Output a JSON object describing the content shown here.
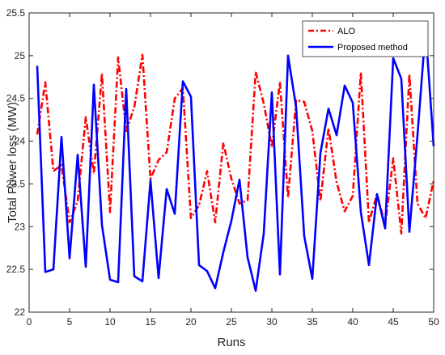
{
  "chart_data": {
    "type": "line",
    "title": "",
    "xlabel": "Runs",
    "ylabel": "Total Power loss (MW)",
    "xlim": [
      0,
      50
    ],
    "ylim": [
      22,
      25.5
    ],
    "xticks": [
      0,
      5,
      10,
      15,
      20,
      25,
      30,
      35,
      40,
      45,
      50
    ],
    "yticks": [
      22,
      22.5,
      23,
      23.5,
      24,
      24.5,
      25,
      25.5
    ],
    "x_tick_labels": [
      "0",
      "5",
      "10",
      "15",
      "20",
      "25",
      "30",
      "35",
      "40",
      "45",
      "50"
    ],
    "y_tick_labels": [
      "22",
      "22.5",
      "23",
      "23.5",
      "24",
      "24.5",
      "25",
      "25.5"
    ],
    "grid": false,
    "legend": "top-right",
    "x": [
      1,
      2,
      3,
      4,
      5,
      6,
      7,
      8,
      9,
      10,
      11,
      12,
      13,
      14,
      15,
      16,
      17,
      18,
      19,
      20,
      21,
      22,
      23,
      24,
      25,
      26,
      27,
      28,
      29,
      30,
      31,
      32,
      33,
      34,
      35,
      36,
      37,
      38,
      39,
      40,
      41,
      42,
      43,
      44,
      45,
      46,
      47,
      48,
      49,
      50
    ],
    "series": [
      {
        "name": "ALO",
        "color": "#ff0000",
        "style": "dash-dot",
        "values": [
          24.08,
          24.69,
          23.65,
          23.72,
          23.05,
          23.3,
          24.28,
          23.62,
          24.79,
          23.17,
          24.98,
          24.12,
          24.4,
          25.01,
          23.56,
          23.78,
          23.87,
          24.5,
          24.62,
          23.1,
          23.25,
          23.65,
          23.05,
          23.98,
          23.56,
          23.27,
          23.31,
          24.81,
          24.44,
          23.93,
          24.69,
          23.34,
          24.48,
          24.46,
          24.12,
          23.3,
          24.15,
          23.52,
          23.18,
          23.36,
          24.8,
          23.05,
          23.38,
          23.02,
          23.8,
          22.92,
          24.78,
          23.27,
          23.1,
          23.54
        ]
      },
      {
        "name": "Proposed method",
        "color": "#0000ff",
        "style": "solid",
        "values": [
          24.88,
          22.47,
          22.5,
          24.05,
          22.63,
          23.84,
          22.53,
          24.66,
          23.02,
          22.38,
          22.35,
          24.61,
          22.42,
          22.36,
          23.54,
          22.4,
          23.44,
          23.15,
          24.7,
          24.52,
          22.55,
          22.48,
          22.28,
          22.7,
          23.07,
          23.55,
          22.64,
          22.25,
          22.92,
          24.57,
          22.44,
          25.0,
          24.4,
          22.89,
          22.39,
          23.86,
          24.38,
          24.07,
          24.65,
          24.45,
          23.17,
          22.55,
          23.38,
          22.98,
          24.97,
          24.73,
          22.94,
          24.07,
          25.31,
          23.94
        ]
      }
    ]
  }
}
